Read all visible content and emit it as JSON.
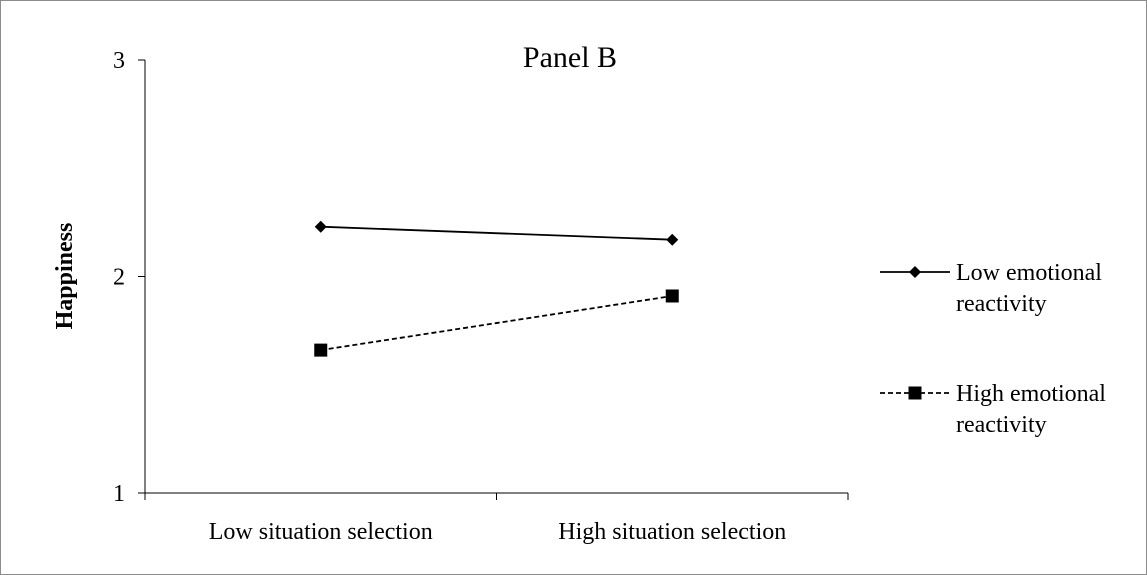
{
  "chart_data": {
    "type": "line",
    "title": "Panel B",
    "xlabel": "",
    "ylabel": "Happiness",
    "categories": [
      "Low situation selection",
      "High situation selection"
    ],
    "ylim": [
      1,
      3
    ],
    "yticks": [
      "1",
      "2",
      "3"
    ],
    "grid": false,
    "legend_position": "right",
    "series": [
      {
        "name": "Low emotional reactivity",
        "name_lines": [
          "Low emotional",
          "reactivity"
        ],
        "values": [
          2.23,
          2.17
        ],
        "marker": "diamond",
        "line_style": "solid",
        "color": "#000000"
      },
      {
        "name": "High emotional reactivity",
        "name_lines": [
          "High emotional",
          "reactivity"
        ],
        "values": [
          1.66,
          1.91
        ],
        "marker": "square",
        "line_style": "dashed",
        "color": "#000000"
      }
    ]
  }
}
